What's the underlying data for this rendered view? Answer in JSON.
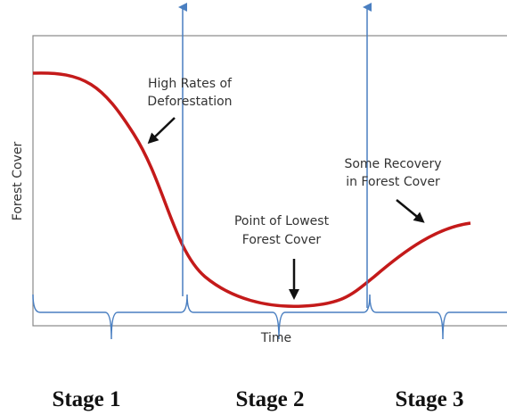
{
  "axes": {
    "y_label": "Forest Cover",
    "x_label": "Time"
  },
  "annotations": [
    {
      "lines": [
        "High Rates of",
        "Deforestation"
      ]
    },
    {
      "lines": [
        "Point of Lowest",
        "Forest Cover"
      ]
    },
    {
      "lines": [
        "Some Recovery",
        "in Forest Cover"
      ]
    }
  ],
  "stages": [
    "Stage 1",
    "Stage 2",
    "Stage 3"
  ]
}
